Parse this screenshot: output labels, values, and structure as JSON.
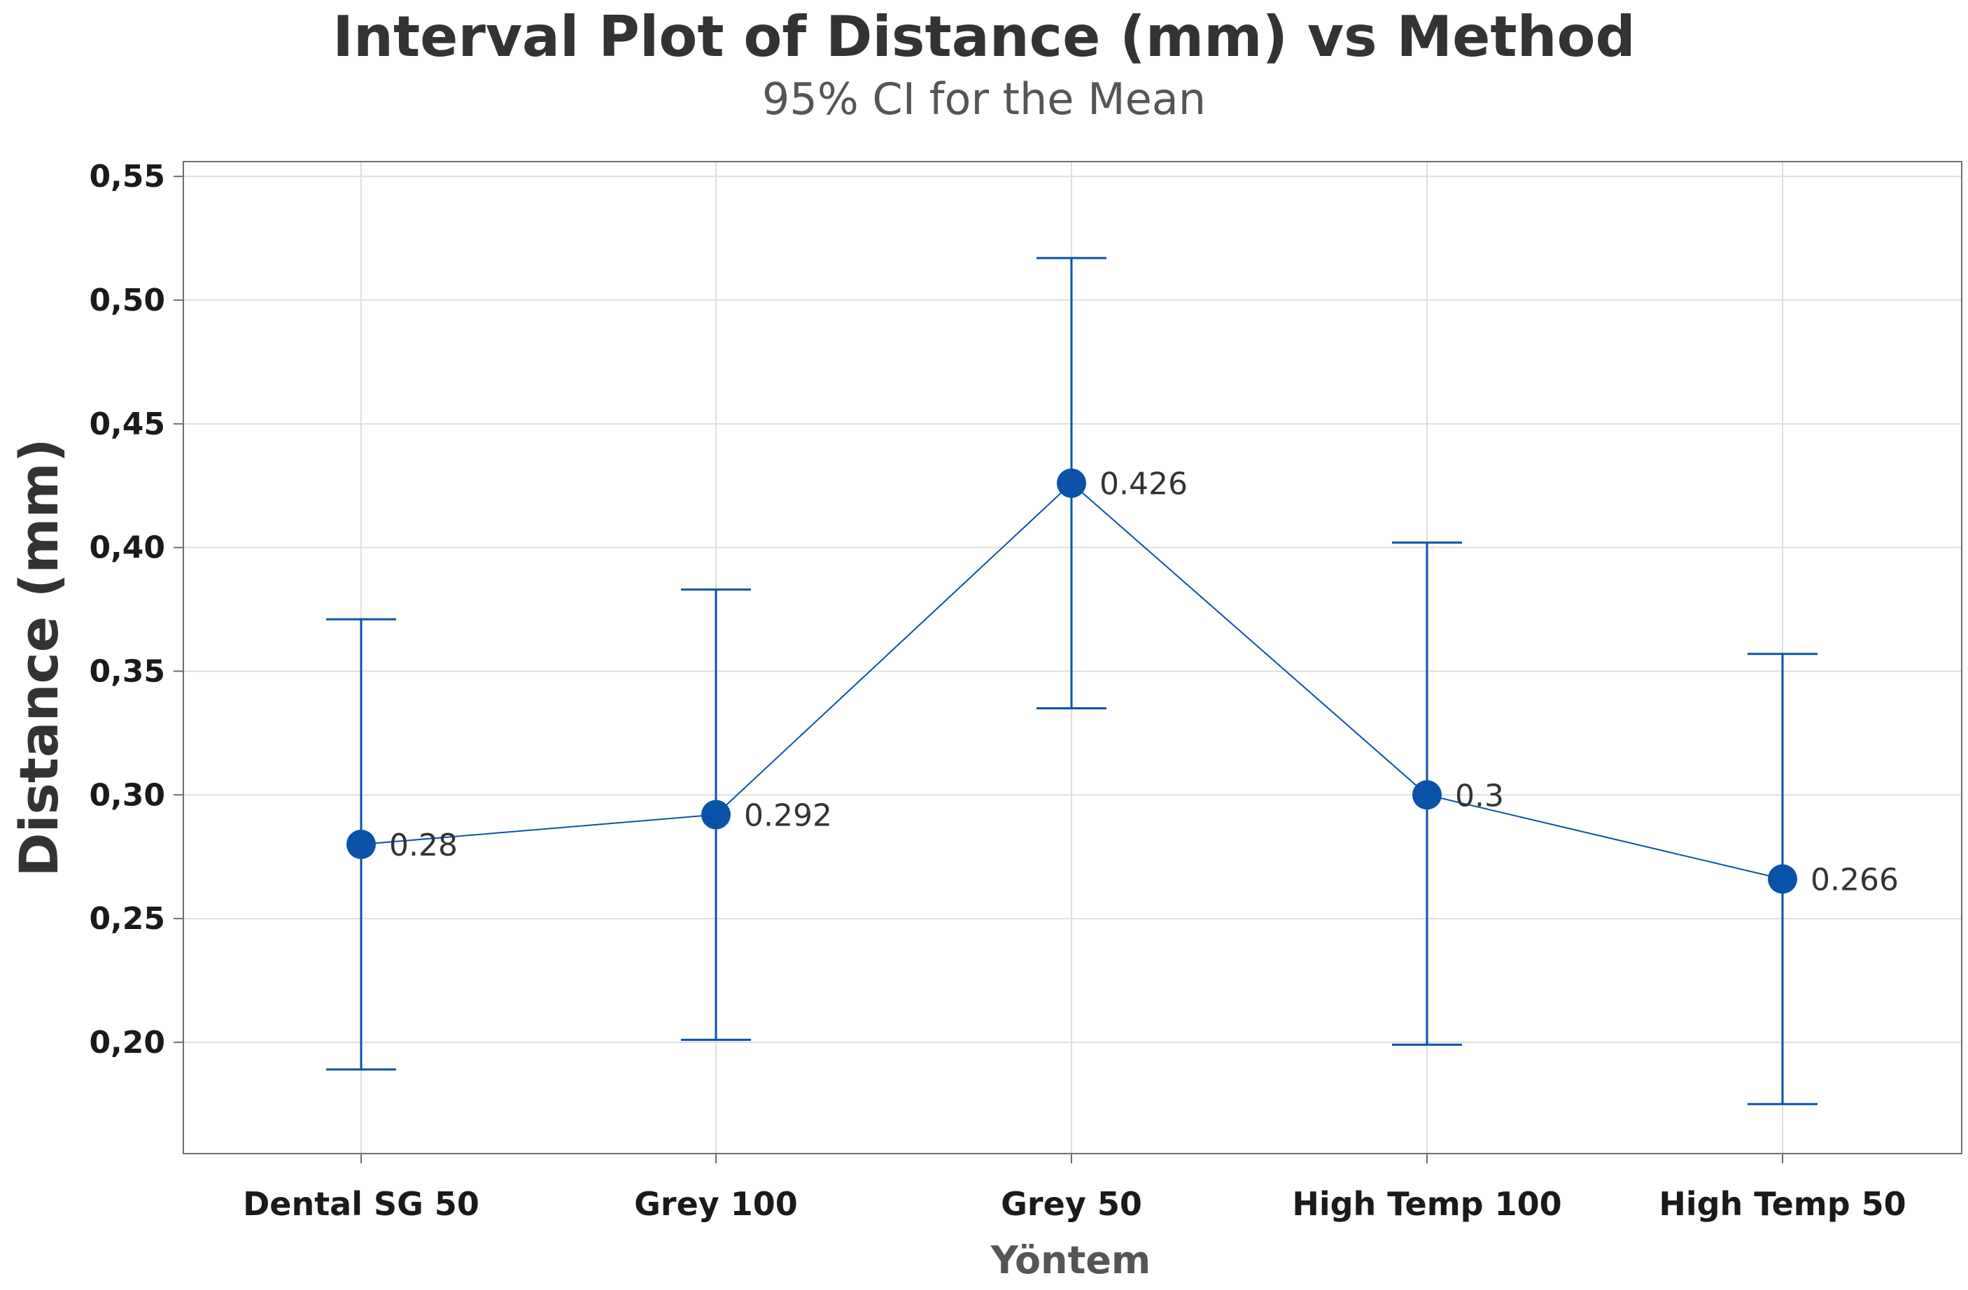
{
  "colors": {
    "series": "#0a52a8",
    "grid": "#dedede",
    "frame": "#6e6e6e",
    "background": "#ffffff"
  },
  "chart_data": {
    "type": "interval",
    "title": "Interval Plot of Distance (mm) vs Method",
    "subtitle": "95% CI for the Mean",
    "xlabel": "Yöntem",
    "ylabel": "Distance (mm)",
    "categories": [
      "Dental SG 50",
      "Grey 100",
      "Grey 50",
      "High Temp 100",
      "High Temp 50"
    ],
    "means": [
      0.28,
      0.292,
      0.426,
      0.3,
      0.266
    ],
    "ci_lower": [
      0.189,
      0.201,
      0.335,
      0.199,
      0.175
    ],
    "ci_upper": [
      0.371,
      0.383,
      0.517,
      0.402,
      0.357
    ],
    "mean_labels": [
      "0.28",
      "0.292",
      "0.426",
      "0.3",
      "0.266"
    ],
    "yticks": [
      0.2,
      0.25,
      0.3,
      0.35,
      0.4,
      0.45,
      0.5,
      0.55
    ],
    "ytick_labels": [
      "0,20",
      "0,25",
      "0,30",
      "0,35",
      "0,40",
      "0,45",
      "0,50",
      "0,55"
    ],
    "ylim": [
      0.155,
      0.556
    ],
    "grid": true,
    "connect_means": true
  }
}
